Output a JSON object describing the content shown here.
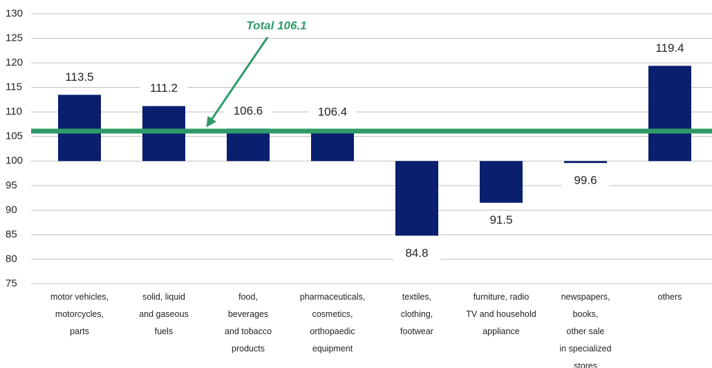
{
  "chart_data": {
    "type": "bar",
    "categories": [
      [
        "motor vehicles,",
        "motorcycles,",
        "parts"
      ],
      [
        "solid, liquid",
        "and gaseous",
        "fuels"
      ],
      [
        "food,",
        "beverages",
        "and tobacco",
        "products"
      ],
      [
        "pharmaceuticals,",
        "cosmetics,",
        "orthopaedic",
        "equipment"
      ],
      [
        "textiles,",
        "clothing,",
        "footwear"
      ],
      [
        "furniture,  radio",
        "TV and household",
        "appliance"
      ],
      [
        "newspapers,",
        "books,",
        "other sale",
        "in specialized",
        "stores"
      ],
      [
        "others"
      ]
    ],
    "values": [
      113.5,
      111.2,
      106.6,
      106.4,
      84.8,
      91.5,
      99.6,
      119.4
    ],
    "color": "#0a1f6e",
    "base": 100,
    "ylim": [
      75,
      130
    ],
    "yticks": [
      75,
      80,
      85,
      90,
      95,
      100,
      105,
      110,
      115,
      120,
      125,
      130
    ],
    "grid": true,
    "reference_line": {
      "value": 106.1,
      "color": "#2e9a68"
    },
    "annotation": "Total 106.1"
  }
}
